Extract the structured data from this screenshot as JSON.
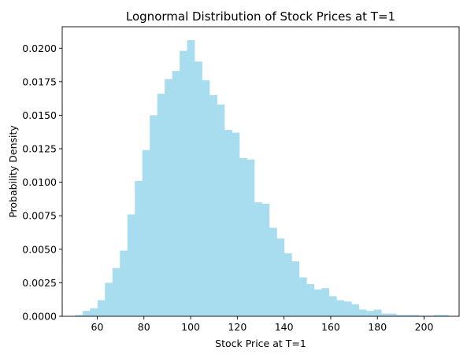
{
  "chart_data": {
    "type": "bar",
    "title": "Lognormal Distribution of Stock Prices at T=1",
    "xlabel": "Stock Price at T=1",
    "ylabel": "Probability Density",
    "xlim": [
      45,
      215
    ],
    "ylim": [
      0,
      0.0216
    ],
    "x_ticks": [
      60,
      80,
      100,
      120,
      140,
      160,
      180,
      200
    ],
    "y_ticks": [
      0.0,
      0.0025,
      0.005,
      0.0075,
      0.01,
      0.0125,
      0.015,
      0.0175,
      0.02
    ],
    "y_tick_labels": [
      "0.0000",
      "0.0025",
      "0.0050",
      "0.0075",
      "0.0100",
      "0.0125",
      "0.0150",
      "0.0175",
      "0.0200"
    ],
    "bar_color": "#a8dcef",
    "grid": false,
    "legend": "none",
    "bin_edges": [
      50.5,
      53.7,
      56.9,
      60.1,
      63.3,
      66.5,
      69.7,
      72.9,
      76.1,
      79.3,
      82.5,
      85.7,
      88.9,
      92.1,
      95.3,
      98.5,
      101.7,
      104.9,
      108.1,
      111.3,
      114.5,
      117.7,
      120.9,
      124.1,
      127.3,
      130.5,
      133.7,
      136.9,
      140.1,
      143.3,
      146.5,
      149.7,
      152.9,
      156.1,
      159.3,
      162.5,
      165.7,
      168.9,
      172.1,
      175.3,
      178.5,
      181.7,
      184.9,
      188.1,
      191.3,
      194.5,
      197.7,
      200.9,
      204.1,
      207.3,
      210.5
    ],
    "values": [
      0.0001,
      0.0004,
      0.0006,
      0.0012,
      0.0025,
      0.0036,
      0.0049,
      0.0076,
      0.0101,
      0.0124,
      0.015,
      0.0166,
      0.0177,
      0.0183,
      0.0198,
      0.0206,
      0.019,
      0.0176,
      0.0165,
      0.0158,
      0.0139,
      0.0137,
      0.0118,
      0.0117,
      0.0085,
      0.0084,
      0.0066,
      0.0058,
      0.0047,
      0.0041,
      0.0029,
      0.0024,
      0.002,
      0.0021,
      0.0015,
      0.0012,
      0.0011,
      0.0009,
      0.0005,
      0.0004,
      0.0005,
      0.0002,
      0.0002,
      0.0001,
      0.0001,
      0.0001,
      5e-05,
      5e-05,
      0.0001,
      0.0001
    ]
  }
}
